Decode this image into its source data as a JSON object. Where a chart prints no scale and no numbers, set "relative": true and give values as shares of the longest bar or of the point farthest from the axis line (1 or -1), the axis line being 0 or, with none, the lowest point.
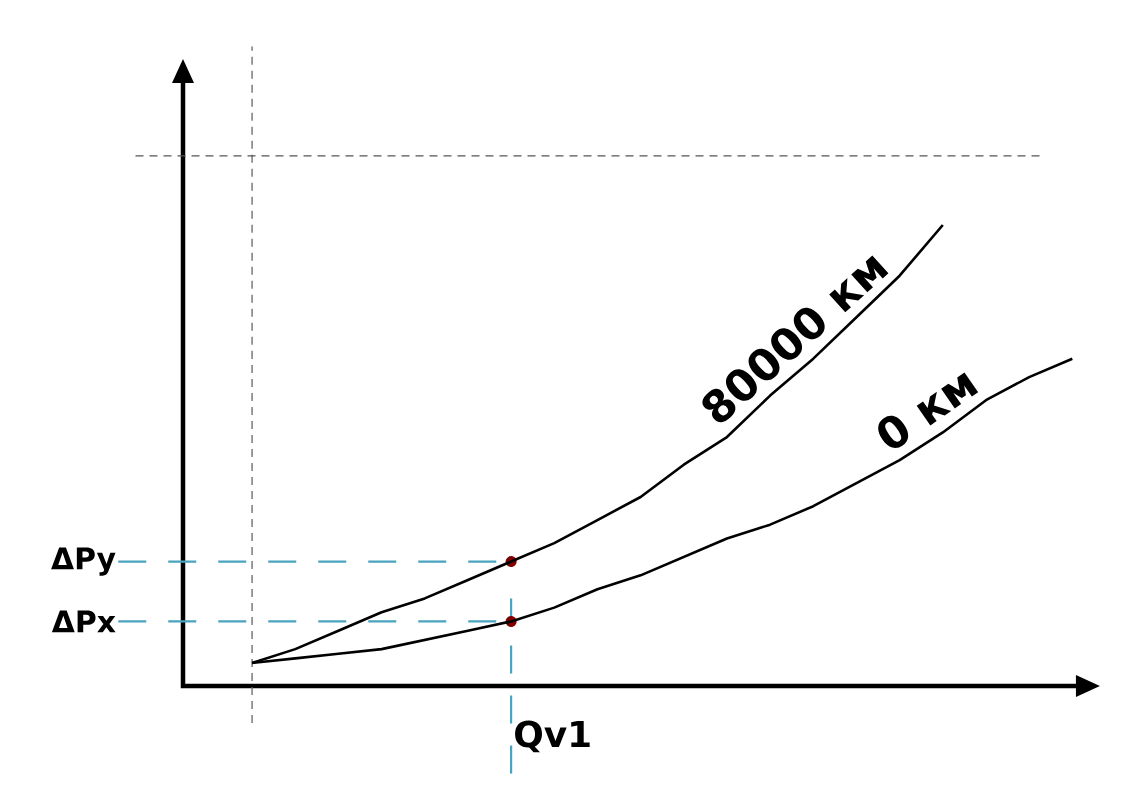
{
  "chart_data": {
    "type": "line",
    "relative": true,
    "marker": "none",
    "line_style": "solid",
    "categories": [
      null,
      null,
      null,
      null,
      null,
      null,
      null,
      null,
      null,
      null,
      null,
      null,
      null,
      null,
      null,
      null,
      null,
      null,
      null,
      null
    ],
    "series": [
      {
        "name": "80000 км",
        "color": "#000000",
        "values": [
          0.05,
          0.08,
          0.12,
          0.16,
          0.19,
          0.23,
          0.27,
          0.31,
          0.36,
          0.41,
          0.48,
          0.54,
          0.63,
          0.71,
          0.8,
          0.89,
          1,
          null,
          null,
          null
        ]
      },
      {
        "name": "0 км",
        "color": "#000000",
        "values": [
          0.05,
          0.06,
          0.07,
          0.08,
          0.1,
          0.12,
          0.14,
          0.17,
          0.21,
          0.24,
          0.28,
          0.32,
          0.35,
          0.39,
          0.44,
          0.49,
          0.55,
          0.62,
          0.67,
          0.71
        ]
      }
    ],
    "ref_lines": [
      {
        "axis": "y",
        "value": 0.27,
        "label": "ΔPy",
        "color": "#4aa3bf",
        "line_style": "dashed"
      },
      {
        "axis": "y",
        "value": 0.14,
        "label": "ΔPx",
        "color": "#4aa3bf",
        "line_style": "dashed"
      },
      {
        "axis": "y",
        "value": 1.15,
        "color": "#555555",
        "line_style": "dashed"
      }
    ],
    "annotations": [
      "Qv1"
    ]
  }
}
